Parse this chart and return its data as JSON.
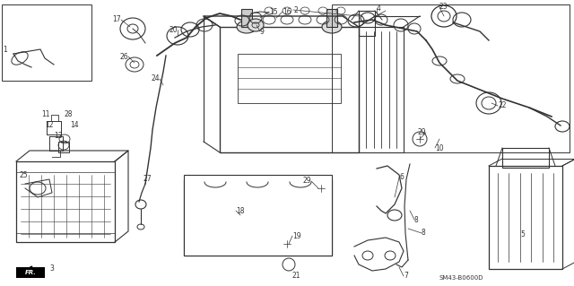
{
  "background_color": "#ffffff",
  "line_color": "#333333",
  "diagram_code": "SM43-B0600D",
  "fig_width": 6.4,
  "fig_height": 3.19,
  "dpi": 100
}
